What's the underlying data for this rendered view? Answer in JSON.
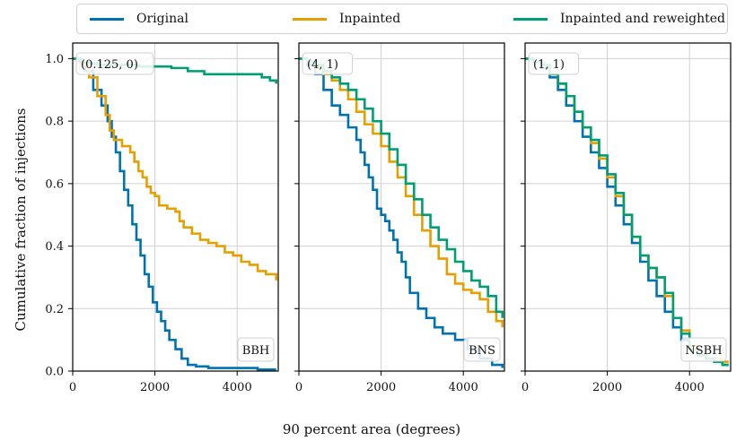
{
  "legend": {
    "items": [
      {
        "label": "Original",
        "color": "#0072B2"
      },
      {
        "label": "Inpainted",
        "color": "#E69F00"
      },
      {
        "label": "Inpainted and reweighted",
        "color": "#009E73"
      }
    ]
  },
  "axes": {
    "xlabel": "90 percent area (degrees)",
    "ylabel": "Cumulative fraction of injections"
  },
  "chart_data": [
    {
      "type": "line",
      "panel_tag": "(0.125, 0)",
      "corner_label": "BBH",
      "xlim": [
        0,
        5000
      ],
      "ylim": [
        0,
        1.05
      ],
      "xticks": [
        "0",
        "2000",
        "4000"
      ],
      "yticks": [
        "0.0",
        "0.2",
        "0.4",
        "0.6",
        "0.8",
        "1.0"
      ],
      "grid": true,
      "series": [
        {
          "name": "Original",
          "color": "#0072B2",
          "x": [
            0,
            150,
            300,
            500,
            700,
            850,
            950,
            1050,
            1150,
            1250,
            1350,
            1450,
            1550,
            1650,
            1750,
            1850,
            1950,
            2050,
            2150,
            2250,
            2350,
            2500,
            2650,
            2800,
            3000,
            3300,
            3700,
            4100,
            4500,
            4950
          ],
          "y": [
            1.0,
            0.99,
            0.96,
            0.9,
            0.85,
            0.8,
            0.75,
            0.7,
            0.64,
            0.58,
            0.53,
            0.47,
            0.42,
            0.37,
            0.31,
            0.27,
            0.22,
            0.19,
            0.16,
            0.13,
            0.1,
            0.07,
            0.04,
            0.02,
            0.015,
            0.01,
            0.01,
            0.01,
            0.005,
            0.005
          ]
        },
        {
          "name": "Inpainted",
          "color": "#E69F00",
          "x": [
            0,
            200,
            400,
            600,
            800,
            900,
            1000,
            1200,
            1400,
            1500,
            1600,
            1700,
            1800,
            1900,
            2000,
            2100,
            2300,
            2500,
            2600,
            2700,
            2900,
            3100,
            3300,
            3500,
            3700,
            3900,
            4100,
            4300,
            4500,
            4700,
            4950
          ],
          "y": [
            1.0,
            0.98,
            0.94,
            0.88,
            0.82,
            0.77,
            0.74,
            0.72,
            0.7,
            0.67,
            0.64,
            0.62,
            0.59,
            0.57,
            0.56,
            0.53,
            0.52,
            0.51,
            0.48,
            0.46,
            0.44,
            0.42,
            0.41,
            0.4,
            0.38,
            0.37,
            0.35,
            0.34,
            0.32,
            0.31,
            0.29
          ]
        },
        {
          "name": "Inpainted and reweighted",
          "color": "#009E73",
          "x": [
            0,
            200,
            400,
            600,
            900,
            1200,
            1600,
            2000,
            2400,
            2800,
            3200,
            3600,
            4000,
            4400,
            4600,
            4800,
            4950
          ],
          "y": [
            1.0,
            0.99,
            0.985,
            0.98,
            0.98,
            0.98,
            0.975,
            0.975,
            0.97,
            0.96,
            0.95,
            0.95,
            0.95,
            0.95,
            0.94,
            0.93,
            0.92
          ]
        }
      ]
    },
    {
      "type": "line",
      "panel_tag": "(4, 1)",
      "corner_label": "BNS",
      "xlim": [
        0,
        5000
      ],
      "ylim": [
        0,
        1.05
      ],
      "xticks": [
        "0",
        "2000",
        "4000"
      ],
      "yticks": [
        "0.0",
        "0.2",
        "0.4",
        "0.6",
        "0.8",
        "1.0"
      ],
      "grid": true,
      "series": [
        {
          "name": "Original",
          "color": "#0072B2",
          "x": [
            0,
            200,
            400,
            600,
            800,
            1000,
            1200,
            1400,
            1500,
            1600,
            1700,
            1800,
            1900,
            2000,
            2100,
            2200,
            2300,
            2400,
            2500,
            2600,
            2700,
            2900,
            3100,
            3300,
            3500,
            3800,
            4100,
            4400,
            4700,
            4950
          ],
          "y": [
            1.0,
            0.98,
            0.95,
            0.9,
            0.85,
            0.82,
            0.78,
            0.74,
            0.7,
            0.66,
            0.62,
            0.58,
            0.52,
            0.5,
            0.48,
            0.45,
            0.42,
            0.38,
            0.35,
            0.3,
            0.25,
            0.2,
            0.17,
            0.14,
            0.12,
            0.1,
            0.07,
            0.04,
            0.02,
            0.01
          ]
        },
        {
          "name": "Inpainted",
          "color": "#E69F00",
          "x": [
            0,
            200,
            400,
            600,
            800,
            1000,
            1200,
            1400,
            1600,
            1800,
            2000,
            2200,
            2400,
            2600,
            2800,
            3000,
            3200,
            3400,
            3600,
            3800,
            4000,
            4200,
            4400,
            4600,
            4800,
            4950
          ],
          "y": [
            1.0,
            0.99,
            0.97,
            0.95,
            0.93,
            0.9,
            0.87,
            0.83,
            0.79,
            0.76,
            0.72,
            0.67,
            0.62,
            0.56,
            0.5,
            0.45,
            0.4,
            0.36,
            0.31,
            0.28,
            0.26,
            0.25,
            0.23,
            0.19,
            0.16,
            0.14
          ]
        },
        {
          "name": "Inpainted and reweighted",
          "color": "#009E73",
          "x": [
            0,
            200,
            400,
            600,
            800,
            1000,
            1200,
            1400,
            1600,
            1800,
            2000,
            2200,
            2400,
            2600,
            2800,
            3000,
            3200,
            3400,
            3600,
            3800,
            4000,
            4200,
            4400,
            4600,
            4800,
            4950
          ],
          "y": [
            1.0,
            0.99,
            0.98,
            0.96,
            0.94,
            0.92,
            0.9,
            0.87,
            0.84,
            0.8,
            0.76,
            0.71,
            0.66,
            0.6,
            0.55,
            0.5,
            0.46,
            0.42,
            0.39,
            0.35,
            0.32,
            0.29,
            0.27,
            0.24,
            0.19,
            0.17
          ]
        }
      ]
    },
    {
      "type": "line",
      "panel_tag": "(1, 1)",
      "corner_label": "NSBH",
      "xlim": [
        0,
        5000
      ],
      "ylim": [
        0,
        1.05
      ],
      "xticks": [
        "0",
        "2000",
        "4000"
      ],
      "yticks": [
        "0.0",
        "0.2",
        "0.4",
        "0.6",
        "0.8",
        "1.0"
      ],
      "grid": true,
      "series": [
        {
          "name": "Original",
          "color": "#0072B2",
          "x": [
            0,
            200,
            400,
            600,
            800,
            1000,
            1200,
            1400,
            1600,
            1800,
            2000,
            2200,
            2400,
            2600,
            2800,
            3000,
            3200,
            3400,
            3600,
            3800,
            4000,
            4200,
            4400,
            4600,
            4800,
            4950
          ],
          "y": [
            1.0,
            0.99,
            0.97,
            0.94,
            0.9,
            0.85,
            0.8,
            0.75,
            0.7,
            0.65,
            0.59,
            0.53,
            0.47,
            0.41,
            0.35,
            0.29,
            0.24,
            0.19,
            0.14,
            0.1,
            0.07,
            0.05,
            0.04,
            0.03,
            0.02,
            0.02
          ]
        },
        {
          "name": "Inpainted",
          "color": "#E69F00",
          "x": [
            0,
            200,
            400,
            600,
            800,
            1000,
            1200,
            1400,
            1600,
            1800,
            2000,
            2200,
            2400,
            2600,
            2800,
            3000,
            3200,
            3400,
            3600,
            3800,
            4000,
            4200,
            4400,
            4600,
            4800,
            4950
          ],
          "y": [
            1.0,
            0.99,
            0.98,
            0.95,
            0.92,
            0.88,
            0.83,
            0.78,
            0.73,
            0.68,
            0.62,
            0.56,
            0.5,
            0.43,
            0.37,
            0.33,
            0.3,
            0.24,
            0.17,
            0.13,
            0.08,
            0.05,
            0.04,
            0.04,
            0.03,
            0.03
          ]
        },
        {
          "name": "Inpainted and reweighted",
          "color": "#009E73",
          "x": [
            0,
            200,
            400,
            600,
            800,
            1000,
            1200,
            1400,
            1600,
            1800,
            2000,
            2200,
            2400,
            2600,
            2800,
            3000,
            3200,
            3400,
            3600,
            3800,
            4000,
            4200,
            4400,
            4600,
            4800,
            4950
          ],
          "y": [
            1.0,
            0.99,
            0.98,
            0.95,
            0.92,
            0.88,
            0.83,
            0.78,
            0.74,
            0.69,
            0.63,
            0.57,
            0.5,
            0.43,
            0.37,
            0.33,
            0.3,
            0.25,
            0.17,
            0.12,
            0.07,
            0.05,
            0.04,
            0.03,
            0.02,
            0.02
          ]
        }
      ]
    }
  ]
}
